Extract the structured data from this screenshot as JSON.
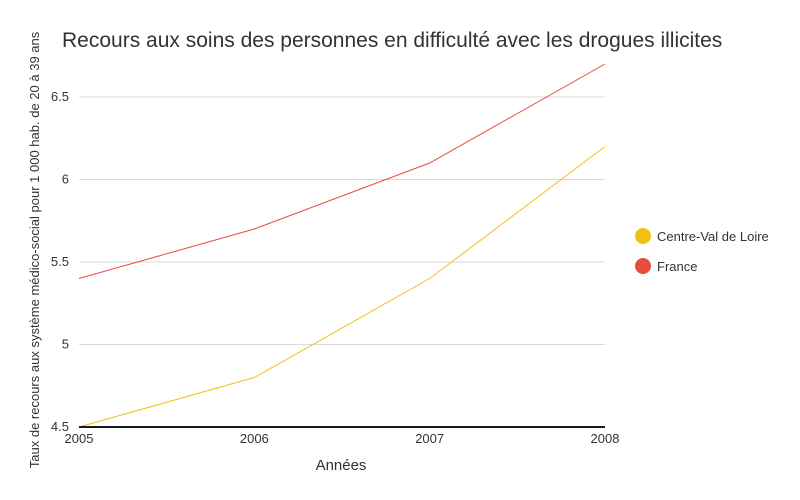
{
  "chart_data": {
    "type": "line",
    "title": "Recours aux soins des personnes en difficulté avec les drogues illicites",
    "xlabel": "Années",
    "ylabel": "Taux de recours aux système médico-social pour 1 000 hab. de 20 à 39 ans",
    "x": [
      "2005",
      "2006",
      "2007",
      "2008"
    ],
    "ylim": [
      4.5,
      6.7
    ],
    "yticks": [
      "4.5",
      "5",
      "5.5",
      "6",
      "6.5"
    ],
    "grid": true,
    "legend_position": "right",
    "series": [
      {
        "name": "Centre-Val de Loire",
        "color": "#f0c20e",
        "values": [
          4.5,
          4.8,
          5.4,
          6.2
        ]
      },
      {
        "name": "France",
        "color": "#e84c3d",
        "values": [
          5.4,
          5.7,
          6.1,
          6.7
        ]
      }
    ]
  }
}
